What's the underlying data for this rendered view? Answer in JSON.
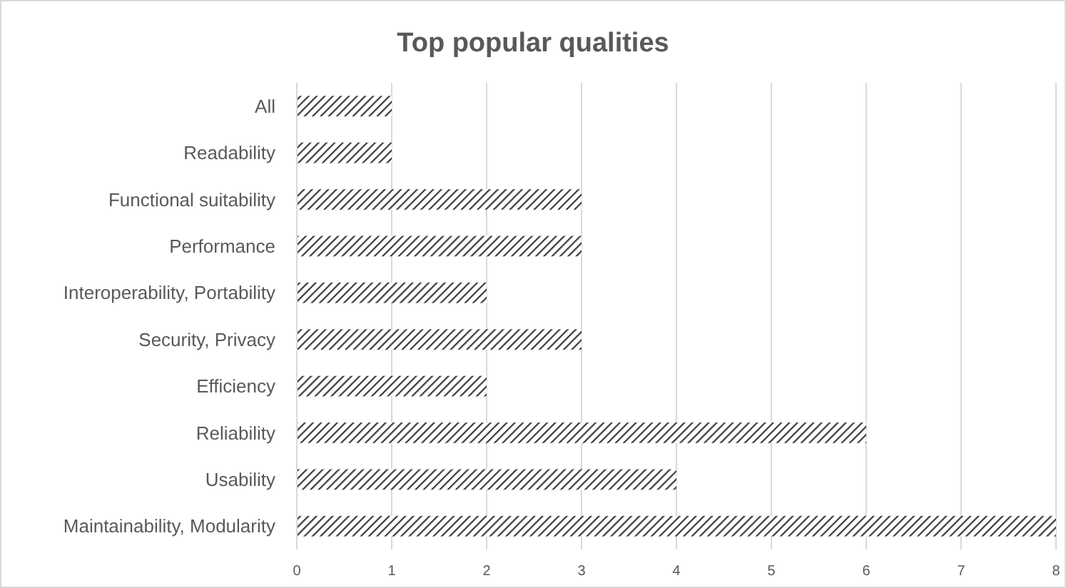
{
  "chart_data": {
    "type": "bar",
    "orientation": "horizontal",
    "title": "Top popular qualities",
    "categories": [
      "All",
      "Readability",
      "Functional suitability",
      "Performance",
      "Interoperability, Portability",
      "Security, Privacy",
      "Efficiency",
      "Reliability",
      "Usability",
      "Maintainability, Modularity"
    ],
    "values": [
      1,
      1,
      3,
      3,
      2,
      3,
      2,
      6,
      4,
      8
    ],
    "color": "#3a3a3a",
    "xlim": [
      0,
      8
    ],
    "xticks": [
      0,
      1,
      2,
      3,
      4,
      5,
      6,
      7,
      8
    ],
    "grid": "x"
  }
}
